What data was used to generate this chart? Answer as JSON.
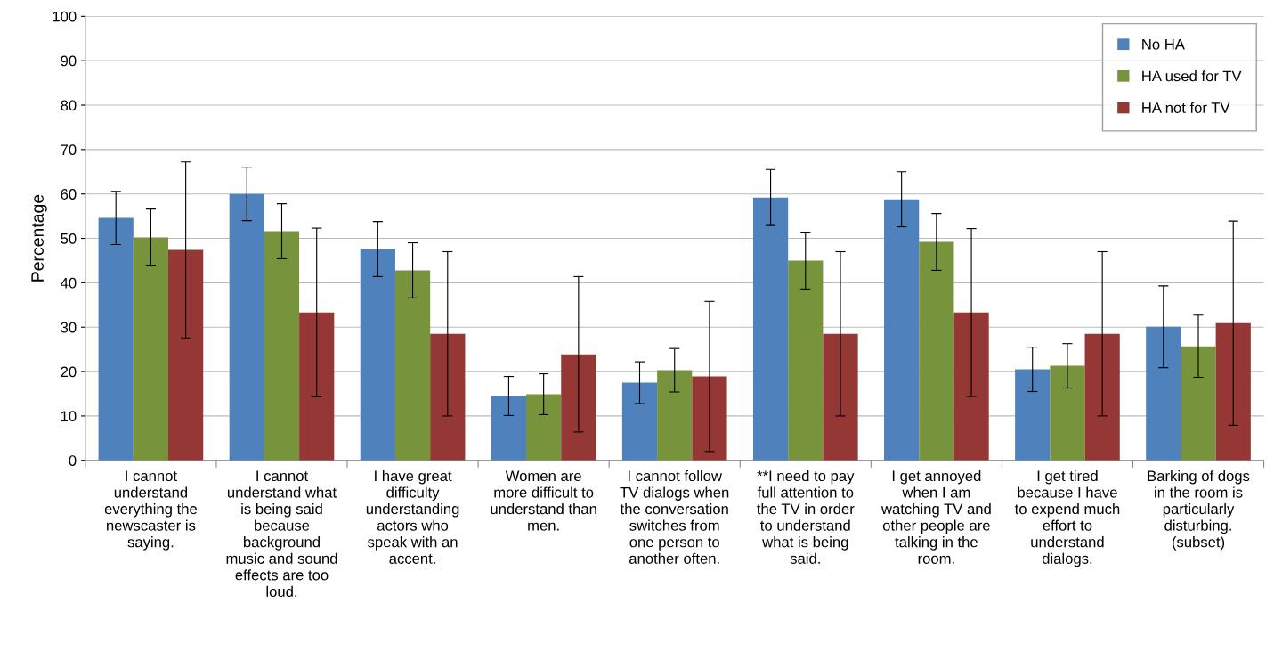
{
  "chart_data": {
    "type": "bar",
    "ylabel": "Percentage",
    "categories": [
      "I cannot\nunderstand\neverything the\nnewscaster is\nsaying.",
      "I cannot\nunderstand what\nis being said\nbecause\nbackground\nmusic and sound\neffects are too\nloud.",
      "I have great\ndifficulty\nunderstanding\nactors who\nspeak with an\naccent.",
      "Women are\nmore difficult to\nunderstand than\nmen.",
      "I cannot follow\nTV dialogs when\nthe conversation\nswitches from\none person to\nanother often.",
      "**I need to pay\nfull attention to\nthe TV in order\nto understand\nwhat is being\nsaid.",
      "I get annoyed\nwhen I am\nwatching TV and\nother people are\ntalking in the\nroom.",
      "I get tired\nbecause I have\nto expend much\neffort to\nunderstand\ndialogs.",
      "Barking of dogs\nin the room is\nparticularly\ndisturbing.\n(subset)"
    ],
    "series": [
      {
        "name": "No HA",
        "color": "#4f81bd",
        "values": [
          54.6,
          60,
          47.6,
          14.5,
          17.5,
          59.2,
          58.8,
          20.5,
          30.1
        ],
        "errors": [
          6,
          6,
          6.2,
          4.4,
          4.7,
          6.3,
          6.2,
          5,
          9.2
        ]
      },
      {
        "name": "HA used for TV",
        "color": "#77933c",
        "values": [
          50.2,
          51.6,
          42.8,
          14.9,
          20.3,
          45,
          49.2,
          21.3,
          25.7
        ],
        "errors": [
          6.4,
          6.2,
          6.2,
          4.6,
          4.9,
          6.4,
          6.4,
          5,
          7
        ]
      },
      {
        "name": "HA not for TV",
        "color": "#953735",
        "values": [
          47.4,
          33.3,
          28.5,
          23.9,
          18.9,
          28.5,
          33.3,
          28.5,
          30.9
        ],
        "errors": [
          19.8,
          19,
          18.5,
          17.5,
          16.9,
          18.5,
          18.9,
          18.5,
          23
        ]
      }
    ],
    "ylim": [
      0,
      100
    ],
    "yticks": [
      0,
      10,
      20,
      30,
      40,
      50,
      60,
      70,
      80,
      90,
      100
    ],
    "grid": "y",
    "legend": "top right"
  }
}
